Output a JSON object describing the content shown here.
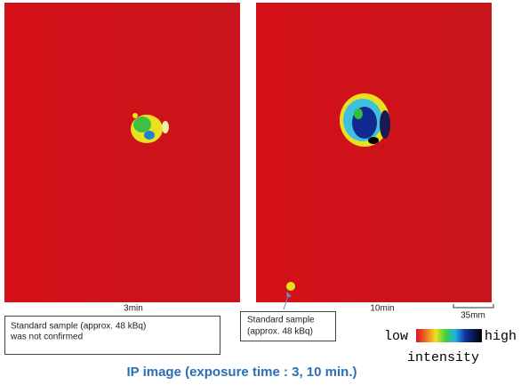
{
  "panels": [
    {
      "label": "3min"
    },
    {
      "label": "10min"
    }
  ],
  "scale_bar": "35mm",
  "notes": [
    {
      "lines": [
        "Standard sample (approx. 48 kBq)",
        "was not  confirmed"
      ]
    },
    {
      "lines": [
        "Standard sample",
        "(approx. 48 kBq)"
      ]
    }
  ],
  "colorbar": {
    "low": "low",
    "high": "high",
    "caption": "intensity"
  },
  "caption": "IP image (exposure time : 3, 10 min.)"
}
